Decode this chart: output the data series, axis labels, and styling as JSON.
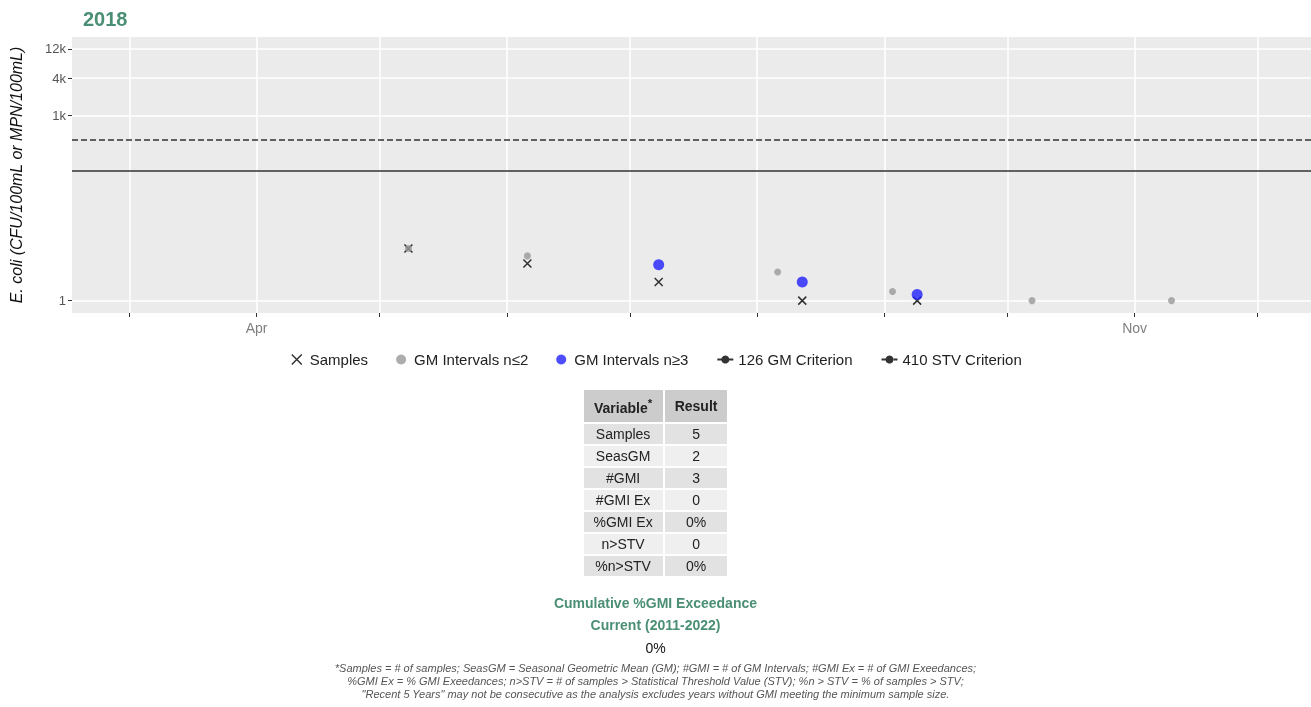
{
  "chart_data": [
    {
      "type": "scatter",
      "title": "2018",
      "ylabel": "E. coli (CFU/100mL or MPN/100mL)",
      "series": [
        {
          "name": "Samples",
          "color": "#000000",
          "marker": "cross",
          "x": [
            "2018-05-08",
            "2018-06-06",
            "2018-07-08",
            "2018-08-12",
            "2018-09-09"
          ],
          "values": [
            7,
            4,
            2,
            1,
            1
          ]
        },
        {
          "name": "GM Intervals n≤2",
          "color": "#999999",
          "marker": "circle",
          "x": [
            "2018-05-08",
            "2018-06-06",
            "2018-08-06",
            "2018-09-03",
            "2018-10-07",
            "2018-11-10"
          ],
          "values": [
            7,
            5.3,
            2.9,
            1.4,
            1,
            1
          ]
        },
        {
          "name": "GM Intervals n≥3",
          "color": "#2020ff",
          "marker": "circle",
          "x": [
            "2018-07-08",
            "2018-08-12",
            "2018-09-09"
          ],
          "values": [
            3.8,
            2,
            1.26
          ]
        }
      ],
      "ref_lines": [
        {
          "axis": "y",
          "value": 126,
          "label": "126 GM Criterion",
          "color": "#333333",
          "line_style": "solid"
        },
        {
          "axis": "y",
          "value": 410,
          "label": "410 STV Criterion",
          "color": "#333333",
          "line_style": "dashed"
        }
      ],
      "log": "y",
      "ylim": [
        0.63,
        18600
      ],
      "yticks": [
        1,
        {
          "value": 1000,
          "label": "1k"
        },
        {
          "value": 4000,
          "label": "4k"
        },
        {
          "value": 12000,
          "label": "12k"
        }
      ],
      "xlim": [
        "2018-02-15",
        "2018-12-14"
      ],
      "xticks": [
        {
          "value": "2018-03-01",
          "label": null
        },
        {
          "value": "2018-04-01",
          "label": "Apr"
        },
        {
          "value": "2018-05-01",
          "label": null
        },
        {
          "value": "2018-06-01",
          "label": null
        },
        {
          "value": "2018-07-01",
          "label": null
        },
        {
          "value": "2018-08-01",
          "label": null
        },
        {
          "value": "2018-09-01",
          "label": null
        },
        {
          "value": "2018-10-01",
          "label": null
        },
        {
          "value": "2018-11-01",
          "label": "Nov"
        },
        {
          "value": "2018-12-01",
          "label": null
        }
      ],
      "grid": true,
      "legend": "bottom"
    },
    {
      "type": "other",
      "title": "Cumulative %GMI Exceedance",
      "subtitle": "Current (2011-2022)",
      "xlabel": "Variable$^{*}$",
      "ylabel": "Result",
      "categories": [
        "Samples",
        "SeasGM",
        "#GMI",
        "#GMI Ex",
        "%GMI Ex",
        "n>STV",
        "%n>STV"
      ],
      "value_labels": [
        "5",
        "2",
        "3",
        "0",
        "0%",
        "0",
        "0%"
      ],
      "annotations": [
        "0%",
        "*Samples = # of samples; SeasGM = Seasonal Geometric Mean (GM); #GMI = # of GM Intervals; #GMI Ex = # of GMI Exeedances;\n%GMI Ex = % GMI Exeedances; n>STV = # of samples > Statistical Threshold Value (STV); %n > STV = % of samples > STV;\n\"Recent 5 Years\" may not be consecutive as the analysis excludes years without GMI meeting the minimum sample size."
      ]
    }
  ]
}
